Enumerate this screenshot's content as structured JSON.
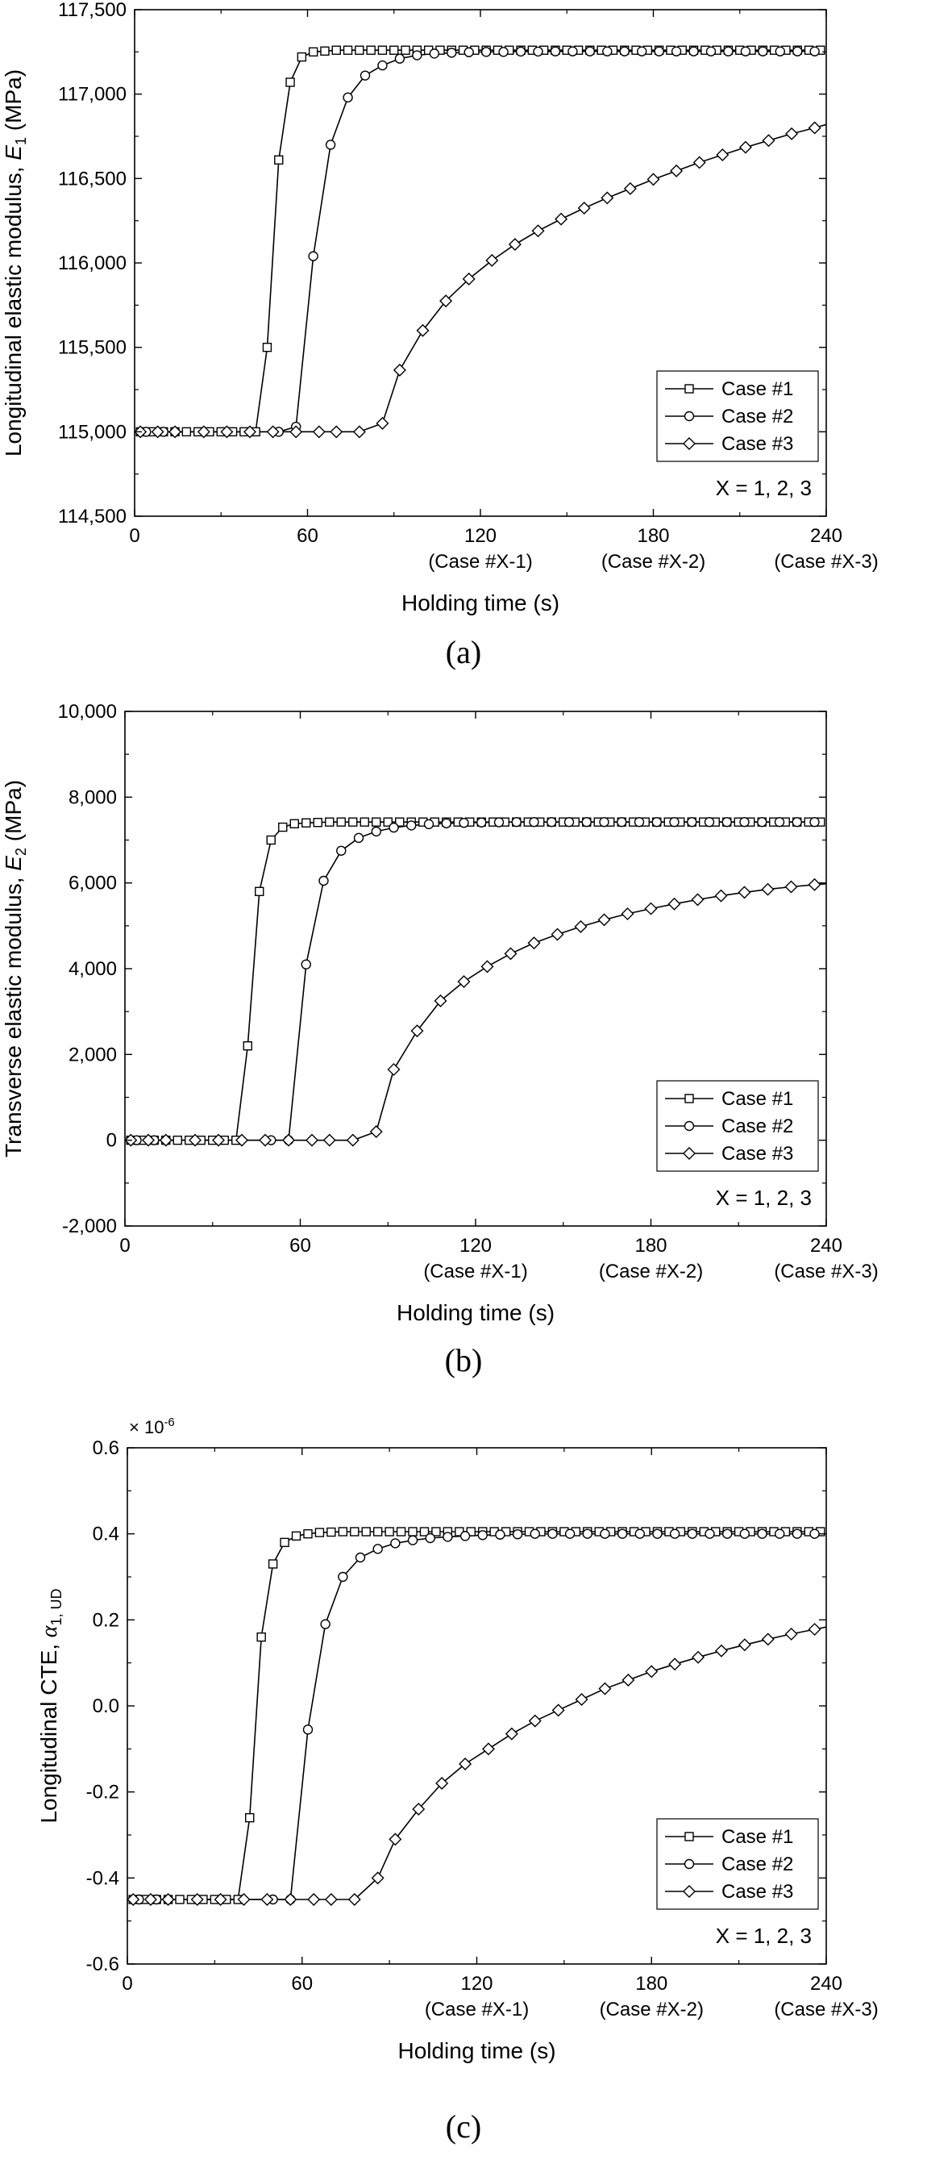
{
  "chart_data": [
    {
      "type": "line",
      "panel_label": "(a)",
      "ylabel_main": "Longitudinal elastic modulus, ",
      "ylabel_symbol": "E",
      "ylabel_sub": "1",
      "ylabel_unit": " (MPa)",
      "ylabel_multiplier": "",
      "xlabel": "Holding time (s)",
      "xlim": [
        0,
        240
      ],
      "ylim": [
        114500,
        117500
      ],
      "xticks": [
        0,
        60,
        120,
        180,
        240
      ],
      "xtick_labels": [
        "0",
        "60",
        "120",
        "180",
        "240"
      ],
      "xtick_sublabels": [
        "",
        "",
        "(Case #X-1)",
        "(Case #X-2)",
        "(Case #X-3)"
      ],
      "yticks": [
        114500,
        115000,
        115500,
        116000,
        116500,
        117000,
        117500
      ],
      "ytick_labels": [
        "114,500",
        "115,000",
        "115,500",
        "116,000",
        "116,500",
        "117,000",
        "117,500"
      ],
      "legend_position": "bottom-right",
      "legend_note": "X = 1, 2, 3",
      "series": [
        {
          "name": "Case #1",
          "marker": "square",
          "x": [
            2,
            6,
            10,
            14,
            18,
            22,
            26,
            30,
            34,
            38,
            42,
            46,
            50,
            54,
            58,
            62,
            66,
            70,
            74,
            78,
            82,
            86,
            90,
            94,
            98,
            102,
            106,
            110,
            114,
            118,
            122,
            126,
            130,
            134,
            138,
            142,
            146,
            150,
            154,
            158,
            162,
            166,
            170,
            174,
            178,
            182,
            186,
            190,
            194,
            198,
            202,
            206,
            210,
            214,
            218,
            222,
            226,
            230,
            234,
            238
          ],
          "y": [
            115000,
            115000,
            115000,
            115000,
            115000,
            115000,
            115000,
            115000,
            115000,
            115000,
            115000,
            115500,
            116610,
            117070,
            117220,
            117250,
            117255,
            117260,
            117260,
            117260,
            117260,
            117260,
            117260,
            117260,
            117260,
            117260,
            117260,
            117260,
            117260,
            117260,
            117260,
            117260,
            117260,
            117260,
            117260,
            117260,
            117260,
            117260,
            117260,
            117260,
            117260,
            117260,
            117260,
            117260,
            117260,
            117260,
            117260,
            117260,
            117260,
            117260,
            117260,
            117260,
            117260,
            117260,
            117260,
            117260,
            117260,
            117260,
            117260,
            117260
          ]
        },
        {
          "name": "Case #2",
          "marker": "circle",
          "x": [
            4,
            10,
            50,
            56,
            62,
            68,
            74,
            80,
            86,
            92,
            98,
            104,
            110,
            116,
            122,
            128,
            134,
            140,
            146,
            152,
            158,
            164,
            170,
            176,
            182,
            188,
            194,
            200,
            206,
            212,
            218,
            224,
            230,
            236
          ],
          "y": [
            115000,
            115000,
            115000,
            115030,
            116040,
            116700,
            116980,
            117110,
            117170,
            117210,
            117230,
            117240,
            117245,
            117248,
            117250,
            117250,
            117252,
            117252,
            117253,
            117253,
            117253,
            117253,
            117253,
            117253,
            117253,
            117253,
            117253,
            117253,
            117253,
            117253,
            117253,
            117253,
            117253,
            117253
          ]
        },
        {
          "name": "Case #3",
          "marker": "diamond",
          "x": [
            2,
            8,
            14,
            24,
            32,
            40,
            48,
            56,
            64,
            70,
            78,
            86,
            92,
            100,
            108,
            116,
            124,
            132,
            140,
            148,
            156,
            164,
            172,
            180,
            188,
            196,
            204,
            212,
            220,
            228,
            236,
            242
          ],
          "y": [
            115000,
            115000,
            115000,
            115000,
            115000,
            115000,
            115000,
            115000,
            115000,
            115000,
            115000,
            115050,
            115365,
            115600,
            115775,
            115905,
            116015,
            116110,
            116190,
            116260,
            116325,
            116385,
            116440,
            116495,
            116545,
            116595,
            116640,
            116685,
            116725,
            116765,
            116800,
            116830
          ]
        }
      ]
    },
    {
      "type": "line",
      "panel_label": "(b)",
      "ylabel_main": "Transverse elastic modulus, ",
      "ylabel_symbol": "E",
      "ylabel_sub": "2",
      "ylabel_unit": " (MPa)",
      "ylabel_multiplier": "",
      "xlabel": "Holding time (s)",
      "xlim": [
        0,
        240
      ],
      "ylim": [
        -2000,
        10000
      ],
      "xticks": [
        0,
        60,
        120,
        180,
        240
      ],
      "xtick_labels": [
        "0",
        "60",
        "120",
        "180",
        "240"
      ],
      "xtick_sublabels": [
        "",
        "",
        "(Case #X-1)",
        "(Case #X-2)",
        "(Case #X-3)"
      ],
      "yticks": [
        -2000,
        0,
        2000,
        4000,
        6000,
        8000,
        10000
      ],
      "ytick_labels": [
        "-2,000",
        "0",
        "2,000",
        "4,000",
        "6,000",
        "8,000",
        "10,000"
      ],
      "legend_position": "bottom-right",
      "legend_note": "X = 1, 2, 3",
      "series": [
        {
          "name": "Case #1",
          "marker": "square",
          "x": [
            2,
            6,
            10,
            14,
            18,
            22,
            26,
            30,
            34,
            38,
            42,
            46,
            50,
            54,
            58,
            62,
            66,
            70,
            74,
            78,
            82,
            86,
            90,
            94,
            98,
            102,
            106,
            110,
            114,
            118,
            122,
            126,
            130,
            134,
            138,
            142,
            146,
            150,
            154,
            158,
            162,
            166,
            170,
            174,
            178,
            182,
            186,
            190,
            194,
            198,
            202,
            206,
            210,
            214,
            218,
            222,
            226,
            230,
            234,
            238
          ],
          "y": [
            0,
            0,
            0,
            0,
            0,
            0,
            0,
            0,
            0,
            0,
            2200,
            5800,
            7000,
            7300,
            7380,
            7400,
            7410,
            7420,
            7420,
            7420,
            7420,
            7420,
            7420,
            7420,
            7420,
            7420,
            7420,
            7420,
            7420,
            7420,
            7420,
            7420,
            7420,
            7420,
            7420,
            7420,
            7420,
            7420,
            7420,
            7420,
            7420,
            7420,
            7420,
            7420,
            7420,
            7420,
            7420,
            7420,
            7420,
            7420,
            7420,
            7420,
            7420,
            7420,
            7420,
            7420,
            7420,
            7420,
            7420,
            7420
          ]
        },
        {
          "name": "Case #2",
          "marker": "circle",
          "x": [
            4,
            10,
            50,
            56,
            62,
            68,
            74,
            80,
            86,
            92,
            98,
            104,
            110,
            116,
            122,
            128,
            134,
            140,
            146,
            152,
            158,
            164,
            170,
            176,
            182,
            188,
            194,
            200,
            206,
            212,
            218,
            224,
            230,
            236
          ],
          "y": [
            0,
            0,
            0,
            0,
            4100,
            6050,
            6750,
            7050,
            7200,
            7290,
            7340,
            7370,
            7390,
            7400,
            7410,
            7415,
            7420,
            7420,
            7420,
            7420,
            7420,
            7420,
            7420,
            7420,
            7420,
            7420,
            7420,
            7420,
            7420,
            7420,
            7420,
            7420,
            7420,
            7420
          ]
        },
        {
          "name": "Case #3",
          "marker": "diamond",
          "x": [
            2,
            8,
            14,
            24,
            32,
            40,
            48,
            56,
            64,
            70,
            78,
            86,
            92,
            100,
            108,
            116,
            124,
            132,
            140,
            148,
            156,
            164,
            172,
            180,
            188,
            196,
            204,
            212,
            220,
            228,
            236,
            242
          ],
          "y": [
            0,
            0,
            0,
            0,
            0,
            0,
            0,
            0,
            0,
            0,
            0,
            200,
            1650,
            2550,
            3250,
            3700,
            4050,
            4350,
            4600,
            4800,
            4980,
            5140,
            5280,
            5400,
            5510,
            5610,
            5700,
            5780,
            5850,
            5910,
            5960,
            5990
          ]
        }
      ]
    },
    {
      "type": "line",
      "panel_label": "(c)",
      "ylabel_main": "Longitudinal CTE, ",
      "ylabel_symbol": "α",
      "ylabel_sub": "1, UD",
      "ylabel_unit": "",
      "ylabel_multiplier": "× 10",
      "ylabel_multiplier_exp": "-6",
      "xlabel": "Holding time (s)",
      "xlim": [
        0,
        240
      ],
      "ylim": [
        -0.6,
        0.6
      ],
      "xticks": [
        0,
        60,
        120,
        180,
        240
      ],
      "xtick_labels": [
        "0",
        "60",
        "120",
        "180",
        "240"
      ],
      "xtick_sublabels": [
        "",
        "",
        "(Case #X-1)",
        "(Case #X-2)",
        "(Case #X-3)"
      ],
      "yticks": [
        -0.6,
        -0.4,
        -0.2,
        0.0,
        0.2,
        0.4,
        0.6
      ],
      "ytick_labels": [
        "-0.6",
        "-0.4",
        "-0.2",
        "0.0",
        "0.2",
        "0.4",
        "0.6"
      ],
      "legend_position": "bottom-right",
      "legend_note": "X = 1, 2, 3",
      "series": [
        {
          "name": "Case #1",
          "marker": "square",
          "x": [
            2,
            6,
            10,
            14,
            18,
            22,
            26,
            30,
            34,
            38,
            42,
            46,
            50,
            54,
            58,
            62,
            66,
            70,
            74,
            78,
            82,
            86,
            90,
            94,
            98,
            102,
            106,
            110,
            114,
            118,
            122,
            126,
            130,
            134,
            138,
            142,
            146,
            150,
            154,
            158,
            162,
            166,
            170,
            174,
            178,
            182,
            186,
            190,
            194,
            198,
            202,
            206,
            210,
            214,
            218,
            222,
            226,
            230,
            234,
            238
          ],
          "y": [
            -0.45,
            -0.45,
            -0.45,
            -0.45,
            -0.45,
            -0.45,
            -0.45,
            -0.45,
            -0.45,
            -0.45,
            -0.26,
            0.16,
            0.33,
            0.38,
            0.395,
            0.4,
            0.403,
            0.404,
            0.405,
            0.405,
            0.405,
            0.405,
            0.405,
            0.405,
            0.405,
            0.405,
            0.405,
            0.405,
            0.405,
            0.405,
            0.405,
            0.405,
            0.405,
            0.405,
            0.405,
            0.405,
            0.405,
            0.405,
            0.405,
            0.405,
            0.405,
            0.405,
            0.405,
            0.405,
            0.405,
            0.405,
            0.405,
            0.405,
            0.405,
            0.405,
            0.405,
            0.405,
            0.405,
            0.405,
            0.405,
            0.405,
            0.405,
            0.405,
            0.405,
            0.405
          ]
        },
        {
          "name": "Case #2",
          "marker": "circle",
          "x": [
            4,
            10,
            50,
            56,
            62,
            68,
            74,
            80,
            86,
            92,
            98,
            104,
            110,
            116,
            122,
            128,
            134,
            140,
            146,
            152,
            158,
            164,
            170,
            176,
            182,
            188,
            194,
            200,
            206,
            212,
            218,
            224,
            230,
            236
          ],
          "y": [
            -0.45,
            -0.45,
            -0.45,
            -0.45,
            -0.055,
            0.19,
            0.3,
            0.345,
            0.365,
            0.378,
            0.385,
            0.39,
            0.393,
            0.395,
            0.397,
            0.398,
            0.399,
            0.4,
            0.4,
            0.4,
            0.4,
            0.4,
            0.4,
            0.4,
            0.4,
            0.4,
            0.4,
            0.4,
            0.4,
            0.4,
            0.4,
            0.4,
            0.4,
            0.4
          ]
        },
        {
          "name": "Case #3",
          "marker": "diamond",
          "x": [
            2,
            8,
            14,
            24,
            32,
            40,
            48,
            56,
            64,
            70,
            78,
            86,
            92,
            100,
            108,
            116,
            124,
            132,
            140,
            148,
            156,
            164,
            172,
            180,
            188,
            196,
            204,
            212,
            220,
            228,
            236,
            242
          ],
          "y": [
            -0.45,
            -0.45,
            -0.45,
            -0.45,
            -0.45,
            -0.45,
            -0.45,
            -0.45,
            -0.45,
            -0.45,
            -0.45,
            -0.4,
            -0.31,
            -0.24,
            -0.18,
            -0.135,
            -0.1,
            -0.065,
            -0.035,
            -0.01,
            0.015,
            0.04,
            0.06,
            0.08,
            0.097,
            0.113,
            0.128,
            0.142,
            0.155,
            0.167,
            0.178,
            0.186
          ]
        }
      ]
    }
  ]
}
